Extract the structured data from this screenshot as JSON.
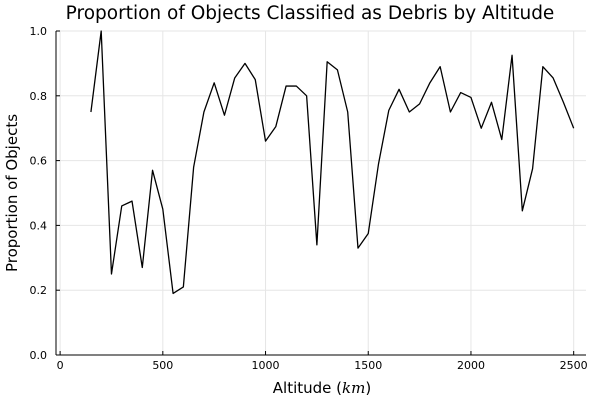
{
  "chart_data": {
    "type": "line",
    "title": "Proportion of Objects Classified as Debris by Altitude",
    "xlabel_prefix": "Altitude (",
    "xlabel_unit": "km",
    "xlabel_suffix": ")",
    "ylabel": "Proportion of Objects",
    "xlim": [
      -20,
      2560
    ],
    "ylim": [
      0,
      1
    ],
    "xticks": [
      0,
      500,
      1000,
      1500,
      2000,
      2500
    ],
    "yticks": [
      0.0,
      0.2,
      0.4,
      0.6,
      0.8,
      1.0
    ],
    "xtick_labels": [
      "0",
      "500",
      "1000",
      "1500",
      "2000",
      "2500"
    ],
    "ytick_labels": [
      "0.0",
      "0.2",
      "0.4",
      "0.6",
      "0.8",
      "1.0"
    ],
    "grid": true,
    "series": [
      {
        "color": "#000000",
        "x": [
          150,
          200,
          250,
          300,
          350,
          400,
          450,
          500,
          550,
          600,
          650,
          700,
          750,
          800,
          850,
          900,
          950,
          1000,
          1050,
          1100,
          1150,
          1200,
          1250,
          1300,
          1350,
          1400,
          1450,
          1500,
          1550,
          1600,
          1650,
          1700,
          1750,
          1800,
          1850,
          1900,
          1950,
          2000,
          2050,
          2100,
          2150,
          2200,
          2250,
          2300,
          2350,
          2400,
          2450,
          2500
        ],
        "y": [
          0.75,
          1.0,
          0.25,
          0.46,
          0.475,
          0.27,
          0.57,
          0.45,
          0.19,
          0.21,
          0.58,
          0.75,
          0.84,
          0.74,
          0.855,
          0.9,
          0.85,
          0.66,
          0.705,
          0.83,
          0.83,
          0.8,
          0.34,
          0.905,
          0.88,
          0.75,
          0.33,
          0.375,
          0.59,
          0.755,
          0.82,
          0.75,
          0.775,
          0.84,
          0.89,
          0.75,
          0.81,
          0.795,
          0.7,
          0.78,
          0.665,
          0.925,
          0.445,
          0.575,
          0.89,
          0.855,
          0.78,
          0.7
        ]
      }
    ]
  }
}
